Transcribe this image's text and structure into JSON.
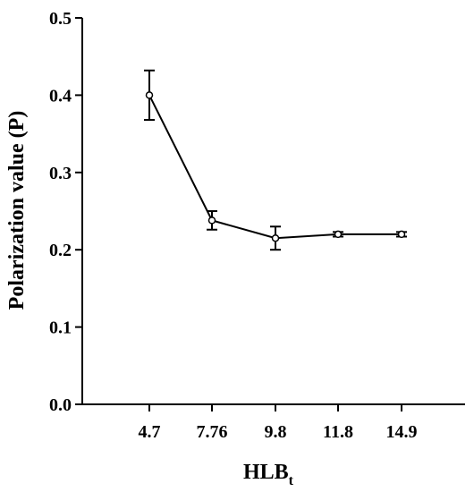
{
  "chart_data": {
    "type": "line",
    "title": "",
    "xlabel": "HLB",
    "xlabel_subscript": "t",
    "ylabel": "Polarization value (P)",
    "categories": [
      "4.7",
      "7.76",
      "9.8",
      "11.8",
      "14.9"
    ],
    "values": [
      0.4,
      0.238,
      0.215,
      0.22,
      0.22
    ],
    "errors": [
      0.032,
      0.012,
      0.015,
      0.003,
      0.003
    ],
    "ylim": [
      0.0,
      0.5
    ],
    "yticks": [
      "0.0",
      "0.1",
      "0.2",
      "0.3",
      "0.4",
      "0.5"
    ],
    "grid": false,
    "legend": "none",
    "line_color": "#000000",
    "marker_fill": "#ffffff"
  }
}
